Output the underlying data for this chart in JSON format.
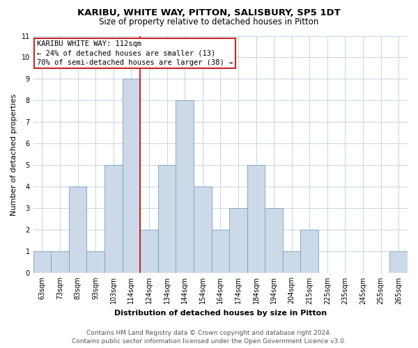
{
  "title": "KARIBU, WHITE WAY, PITTON, SALISBURY, SP5 1DT",
  "subtitle": "Size of property relative to detached houses in Pitton",
  "xlabel": "Distribution of detached houses by size in Pitton",
  "ylabel": "Number of detached properties",
  "bin_labels": [
    "63sqm",
    "73sqm",
    "83sqm",
    "93sqm",
    "103sqm",
    "114sqm",
    "124sqm",
    "134sqm",
    "144sqm",
    "154sqm",
    "164sqm",
    "174sqm",
    "184sqm",
    "194sqm",
    "204sqm",
    "215sqm",
    "225sqm",
    "235sqm",
    "245sqm",
    "255sqm",
    "265sqm"
  ],
  "bar_heights": [
    1,
    1,
    4,
    1,
    5,
    9,
    2,
    5,
    8,
    4,
    2,
    3,
    5,
    3,
    1,
    2,
    0,
    0,
    0,
    0,
    1
  ],
  "bar_color": "#ccd9e8",
  "bar_edgecolor": "#7a9fc0",
  "vline_color": "#cc0000",
  "ylim": [
    0,
    11
  ],
  "yticks": [
    0,
    1,
    2,
    3,
    4,
    5,
    6,
    7,
    8,
    9,
    10,
    11
  ],
  "annotation_title": "KARIBU WHITE WAY: 112sqm",
  "annotation_line1": "← 24% of detached houses are smaller (13)",
  "annotation_line2": "70% of semi-detached houses are larger (38) →",
  "footer_line1": "Contains HM Land Registry data © Crown copyright and database right 2024.",
  "footer_line2": "Contains public sector information licensed under the Open Government Licence v3.0.",
  "title_fontsize": 9.5,
  "subtitle_fontsize": 8.5,
  "xlabel_fontsize": 8,
  "ylabel_fontsize": 8,
  "tick_fontsize": 7,
  "annotation_fontsize": 7.5,
  "footer_fontsize": 6.5
}
